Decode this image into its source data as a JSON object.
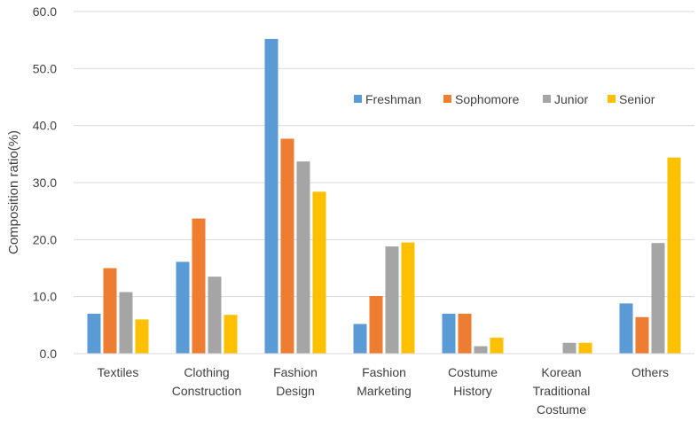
{
  "chart_data": {
    "type": "bar",
    "title": "",
    "xlabel": "",
    "ylabel": "Composition ratio(%)",
    "ylim": [
      0,
      60
    ],
    "yticks": [
      "0.0",
      "10.0",
      "20.0",
      "30.0",
      "40.0",
      "50.0",
      "60.0"
    ],
    "grid": true,
    "legend_position": "top-right",
    "categories": [
      [
        "Textiles"
      ],
      [
        "Clothing",
        "Construction"
      ],
      [
        "Fashion",
        "Design"
      ],
      [
        "Fashion",
        "Marketing"
      ],
      [
        "Costume",
        "History"
      ],
      [
        "Korean",
        "Traditional",
        "Costume"
      ],
      [
        "Others"
      ]
    ],
    "series": [
      {
        "name": "Freshman",
        "color": "#5B9BD5",
        "values": [
          7.0,
          16.1,
          55.2,
          5.2,
          7.0,
          0.0,
          8.8
        ]
      },
      {
        "name": "Sophomore",
        "color": "#ED7D31",
        "values": [
          15.0,
          23.7,
          37.7,
          10.1,
          7.0,
          0.0,
          6.4
        ]
      },
      {
        "name": "Junior",
        "color": "#A5A5A5",
        "values": [
          10.8,
          13.5,
          33.7,
          18.8,
          1.3,
          1.9,
          19.4
        ]
      },
      {
        "name": "Senior",
        "color": "#FFC000",
        "values": [
          6.0,
          6.8,
          28.4,
          19.5,
          2.8,
          1.9,
          34.4
        ]
      }
    ]
  }
}
